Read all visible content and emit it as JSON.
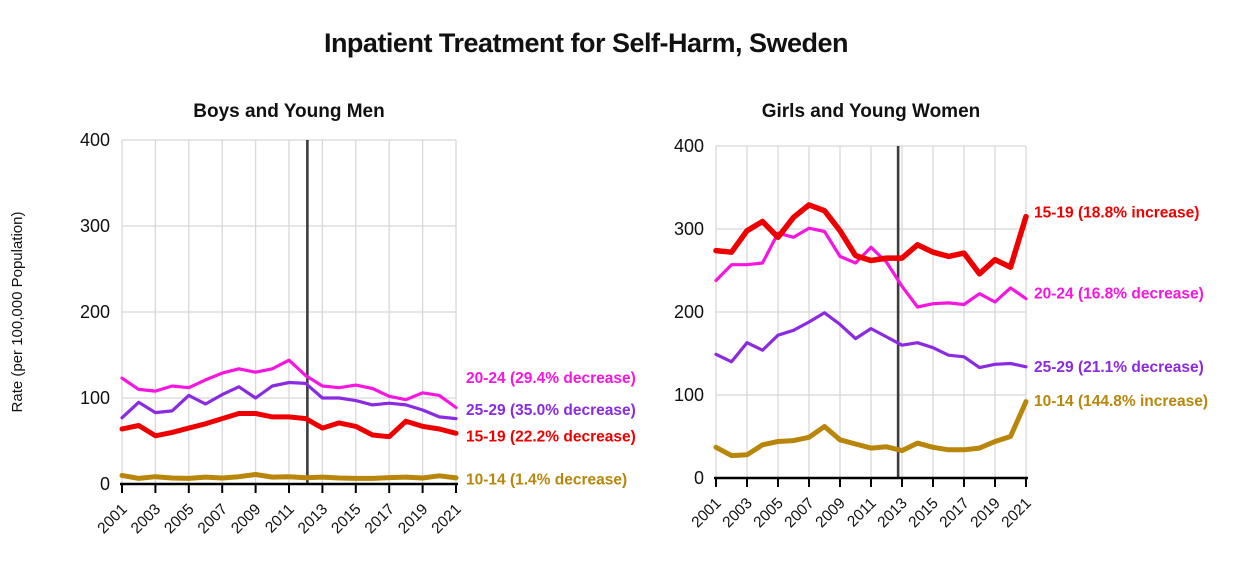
{
  "page_title": "Inpatient Treatment for Self-Harm, Sweden",
  "colors": {
    "red": "#ee0000",
    "magenta": "#f715e0",
    "purple": "#8a2be2",
    "gold": "#b8860b",
    "marker_line": "#3d3d3d",
    "grid": "#d8d8d8",
    "axis": "#000000",
    "text": "#111111"
  },
  "chart_data": [
    {
      "type": "line",
      "title": "Boys and Young Men",
      "ylabel": "Rate (per 100,000 Population)",
      "ylim": [
        0,
        400
      ],
      "yticks": [
        0,
        100,
        200,
        300,
        400
      ],
      "grid": true,
      "x": [
        2001,
        2002,
        2003,
        2004,
        2005,
        2006,
        2007,
        2008,
        2009,
        2010,
        2011,
        2012,
        2013,
        2014,
        2015,
        2016,
        2017,
        2018,
        2019,
        2020,
        2021
      ],
      "x_tick_labels": [
        "2001",
        "2003",
        "2005",
        "2007",
        "2009",
        "2011",
        "2013",
        "2015",
        "2017",
        "2019",
        "2021"
      ],
      "marker_line_year": 2012.1,
      "legend_position": "right-annotations",
      "series": [
        {
          "name": "15-19",
          "label": "15-19 (22.2% decrease)",
          "color_key": "red",
          "width": 5,
          "label_value": 55,
          "values": [
            64,
            68,
            56,
            60,
            65,
            70,
            76,
            82,
            82,
            78,
            78,
            76,
            65,
            71,
            67,
            57,
            55,
            73,
            67,
            64,
            59
          ]
        },
        {
          "name": "25-29",
          "label": "25-29 (35.0% decrease)",
          "color_key": "purple",
          "width": 3.2,
          "label_value": 86,
          "values": [
            77,
            95,
            83,
            85,
            103,
            93,
            104,
            113,
            100,
            114,
            118,
            117,
            100,
            100,
            97,
            92,
            94,
            92,
            86,
            78,
            76
          ]
        },
        {
          "name": "20-24",
          "label": "20-24 (29.4% decrease)",
          "color_key": "magenta",
          "width": 3.2,
          "label_value": 123,
          "values": [
            123,
            110,
            108,
            114,
            112,
            121,
            129,
            134,
            130,
            134,
            144,
            126,
            114,
            112,
            115,
            111,
            102,
            98,
            106,
            103,
            89
          ]
        },
        {
          "name": "10-14",
          "label": "10-14 (1.4% decrease)",
          "color_key": "gold",
          "width": 5,
          "label_value": 5,
          "values": [
            10,
            6.5,
            8.5,
            7,
            6.5,
            8,
            7,
            8.5,
            11,
            8,
            8.5,
            7.2,
            8,
            7,
            6.5,
            6.5,
            7.5,
            8,
            7,
            9.5,
            7.1
          ]
        }
      ]
    },
    {
      "type": "line",
      "title": "Girls and Young Women",
      "ylabel": "",
      "ylim": [
        0,
        400
      ],
      "yticks": [
        0,
        100,
        200,
        300,
        400
      ],
      "grid": true,
      "x": [
        2001,
        2002,
        2003,
        2004,
        2005,
        2006,
        2007,
        2008,
        2009,
        2010,
        2011,
        2012,
        2013,
        2014,
        2015,
        2016,
        2017,
        2018,
        2019,
        2020,
        2021
      ],
      "x_tick_labels": [
        "2001",
        "2003",
        "2005",
        "2007",
        "2009",
        "2011",
        "2013",
        "2015",
        "2017",
        "2019",
        "2021"
      ],
      "marker_line_year": 2012.75,
      "legend_position": "right-annotations",
      "series": [
        {
          "name": "25-29",
          "label": "25-29 (21.1% decrease)",
          "color_key": "purple",
          "width": 3.2,
          "label_value": 134,
          "values": [
            149,
            140,
            163,
            154,
            172,
            178,
            188,
            199,
            185,
            168,
            180,
            170,
            160,
            163,
            157,
            148,
            146,
            133,
            137,
            138,
            134
          ]
        },
        {
          "name": "20-24",
          "label": "20-24 (16.8% decrease)",
          "color_key": "magenta",
          "width": 3.2,
          "label_value": 222,
          "values": [
            238,
            257,
            257,
            259,
            295,
            290,
            301,
            297,
            267,
            259,
            278,
            260,
            231,
            206,
            210,
            211,
            209,
            222,
            212,
            229,
            216
          ]
        },
        {
          "name": "15-19",
          "label": "15-19 (18.8% increase)",
          "color_key": "red",
          "width": 5.5,
          "label_value": 320,
          "values": [
            274,
            272,
            298,
            309,
            290,
            314,
            329,
            322,
            298,
            268,
            262,
            265,
            265,
            281,
            272,
            267,
            271,
            246,
            263,
            254,
            315
          ]
        },
        {
          "name": "10-14",
          "label": "10-14 (144.8% increase)",
          "color_key": "gold",
          "width": 5,
          "label_value": 93,
          "values": [
            37,
            27,
            28,
            40,
            44,
            45,
            49,
            62,
            46,
            41,
            36,
            37.6,
            33,
            42,
            37,
            34,
            34,
            36,
            44,
            50,
            92
          ]
        }
      ]
    }
  ]
}
